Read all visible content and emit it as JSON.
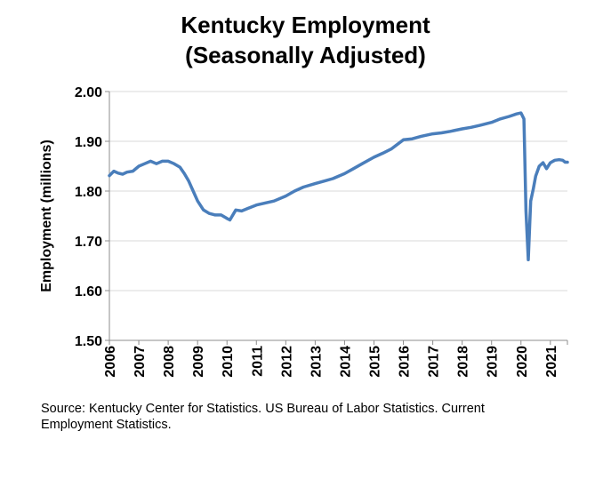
{
  "title_line1": "Kentucky Employment",
  "title_line2": "(Seasonally Adjusted)",
  "source_line1": "Source: Kentucky Center for Statistics. US Bureau of Labor Statistics. Current",
  "source_line2": "Employment Statistics.",
  "chart_data": {
    "type": "line",
    "ylabel": "Employment (millions)",
    "xlabel": "",
    "ylim": [
      1.5,
      2.0
    ],
    "xlim": [
      2006.0,
      2021.58
    ],
    "y_ticks": [
      "1.50",
      "1.60",
      "1.70",
      "1.80",
      "1.90",
      "2.00"
    ],
    "x_ticks": [
      "2006",
      "2007",
      "2008",
      "2009",
      "2010",
      "2011",
      "2012",
      "2013",
      "2014",
      "2015",
      "2016",
      "2017",
      "2018",
      "2019",
      "2020",
      "2021"
    ],
    "grid": "horizontal",
    "line_color": "#4a7ebb",
    "series": [
      {
        "x": [
          2006.0,
          2006.15,
          2006.3,
          2006.45,
          2006.6,
          2006.8,
          2007.0,
          2007.2,
          2007.4,
          2007.6,
          2007.8,
          2008.0,
          2008.2,
          2008.4,
          2008.55,
          2008.7,
          2008.85,
          2009.0,
          2009.2,
          2009.4,
          2009.6,
          2009.8,
          2010.0,
          2010.1,
          2010.3,
          2010.5,
          2010.7,
          2011.0,
          2011.3,
          2011.6,
          2012.0,
          2012.3,
          2012.6,
          2013.0,
          2013.3,
          2013.6,
          2014.0,
          2014.3,
          2014.6,
          2015.0,
          2015.3,
          2015.6,
          2016.0,
          2016.3,
          2016.6,
          2017.0,
          2017.3,
          2017.6,
          2018.0,
          2018.3,
          2018.6,
          2019.0,
          2019.3,
          2019.6,
          2019.85,
          2020.0,
          2020.1,
          2020.17,
          2020.25,
          2020.33,
          2020.42,
          2020.5,
          2020.62,
          2020.75,
          2020.87,
          2021.0,
          2021.15,
          2021.3,
          2021.42,
          2021.5,
          2021.58
        ],
        "y": [
          1.831,
          1.84,
          1.836,
          1.834,
          1.838,
          1.84,
          1.85,
          1.855,
          1.86,
          1.855,
          1.86,
          1.86,
          1.855,
          1.848,
          1.835,
          1.82,
          1.8,
          1.78,
          1.762,
          1.755,
          1.752,
          1.752,
          1.745,
          1.742,
          1.762,
          1.76,
          1.765,
          1.772,
          1.776,
          1.78,
          1.79,
          1.8,
          1.808,
          1.815,
          1.82,
          1.825,
          1.835,
          1.845,
          1.855,
          1.868,
          1.876,
          1.885,
          1.903,
          1.905,
          1.91,
          1.915,
          1.917,
          1.92,
          1.925,
          1.928,
          1.932,
          1.938,
          1.945,
          1.95,
          1.955,
          1.957,
          1.945,
          1.76,
          1.662,
          1.78,
          1.805,
          1.83,
          1.85,
          1.857,
          1.845,
          1.857,
          1.862,
          1.863,
          1.862,
          1.858,
          1.858
        ]
      }
    ]
  }
}
